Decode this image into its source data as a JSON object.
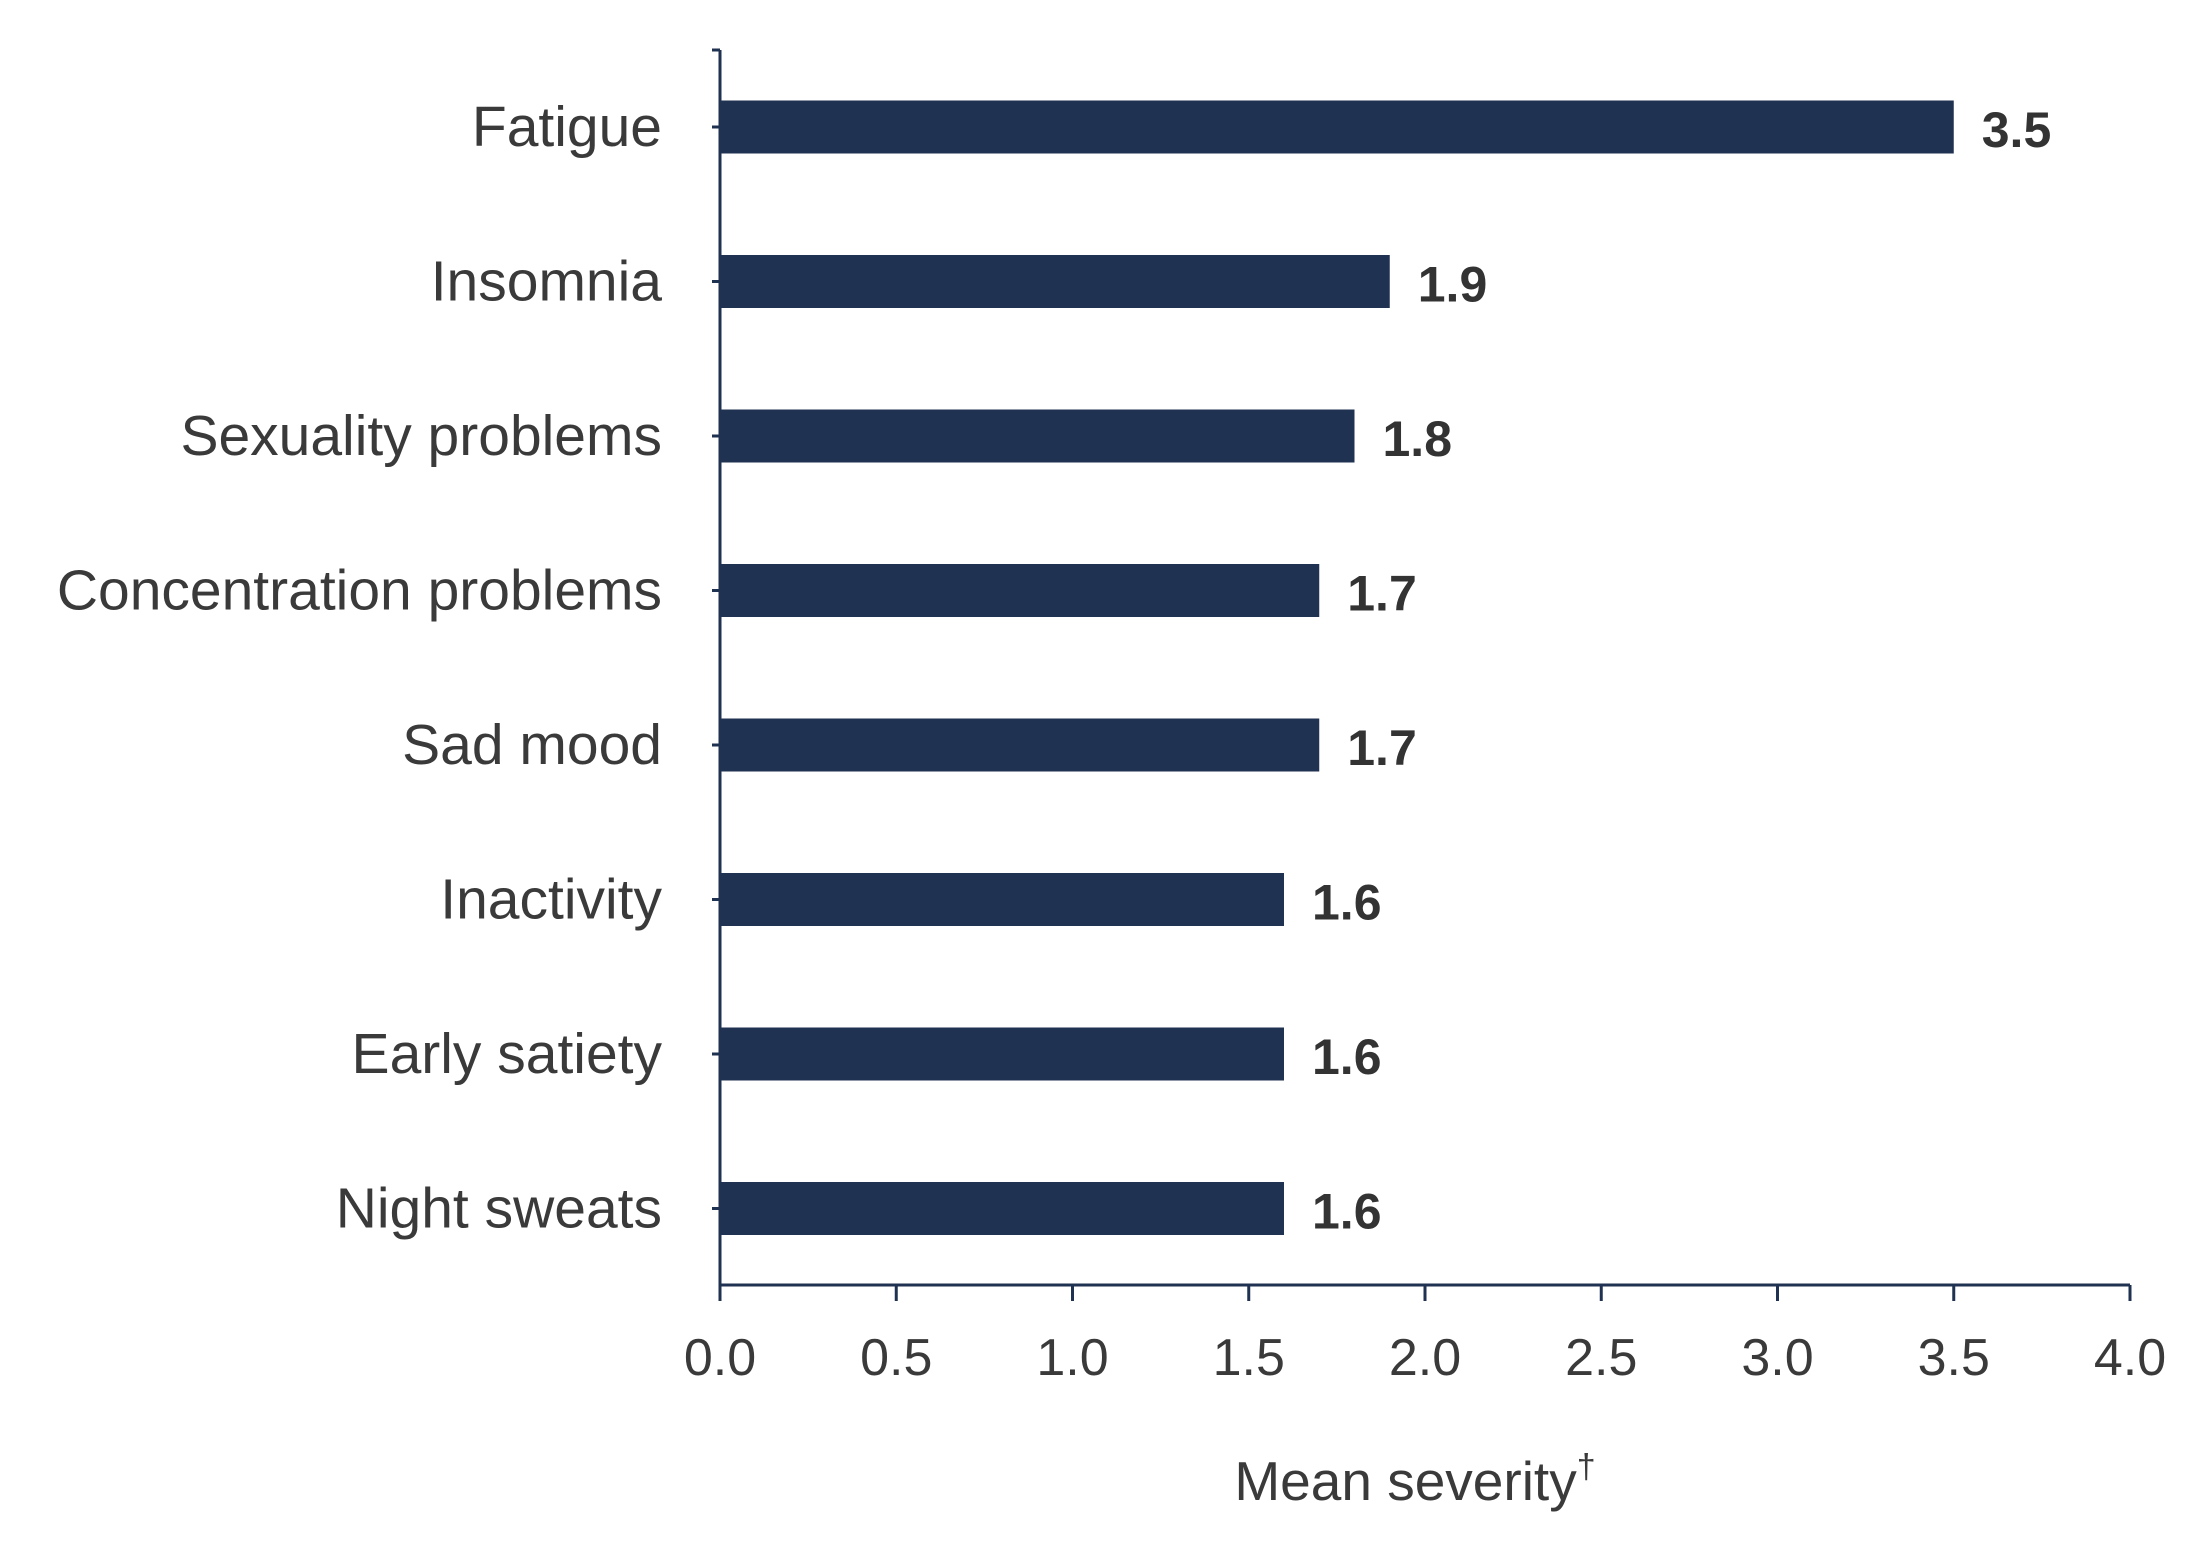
{
  "colors": {
    "bar": "#203251",
    "axis": "#203251",
    "text": "#3a3a3a",
    "value_text": "#333333"
  },
  "chart_data": {
    "type": "bar",
    "orientation": "horizontal",
    "categories": [
      "Fatigue",
      "Insomnia",
      "Sexuality problems",
      "Concentration problems",
      "Sad mood",
      "Inactivity",
      "Early satiety",
      "Night sweats"
    ],
    "values": [
      3.5,
      1.9,
      1.8,
      1.7,
      1.7,
      1.6,
      1.6,
      1.6
    ],
    "value_labels": [
      "3.5",
      "1.9",
      "1.8",
      "1.7",
      "1.7",
      "1.6",
      "1.6",
      "1.6"
    ],
    "xlabel": "Mean severity",
    "xlabel_superscript": "†",
    "xlim": [
      0,
      4
    ],
    "xticks": [
      0,
      0.5,
      1,
      1.5,
      2,
      2.5,
      3,
      3.5,
      4
    ],
    "xtick_labels": [
      "0.0",
      "0.5",
      "1.0",
      "1.5",
      "2.0",
      "2.5",
      "3.0",
      "3.5",
      "4.0"
    ],
    "grid": false,
    "legend": "none"
  }
}
